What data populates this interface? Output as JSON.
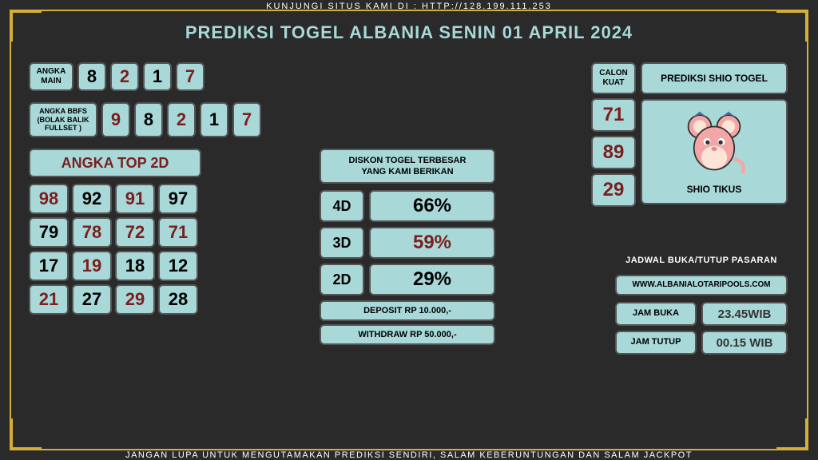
{
  "top_url": "KUNJUNGI SITUS KAMI DI : HTTP://128.199.111.253",
  "title": "PREDIKSI TOGEL ALBANIA SENIN 01 APRIL 2024",
  "bottom": "JANGAN LUPA UNTUK MENGUTAMAKAN PREDIKSI SENDIRI, SALAM KEBERUNTUNGAN DAN SALAM JACKPOT",
  "angka_main": {
    "label": "ANGKA\nMAIN",
    "digits": [
      "8",
      "2",
      "1",
      "7"
    ]
  },
  "angka_bbfs": {
    "label": "ANGKA BBFS\n(BOLAK BALIK\nFULLSET )",
    "digits": [
      "9",
      "8",
      "2",
      "1",
      "7"
    ]
  },
  "top2d": {
    "title": "ANGKA TOP 2D",
    "pairs": [
      "98",
      "92",
      "91",
      "97",
      "79",
      "78",
      "72",
      "71",
      "17",
      "19",
      "18",
      "12",
      "21",
      "27",
      "29",
      "28"
    ]
  },
  "diskon": {
    "title": "DISKON TOGEL TERBESAR\nYANG KAMI BERIKAN",
    "rows": [
      {
        "label": "4D",
        "val": "66%",
        "style": "blk"
      },
      {
        "label": "3D",
        "val": "59%",
        "style": "red"
      },
      {
        "label": "2D",
        "val": "29%",
        "style": "blk"
      }
    ],
    "deposit": "DEPOSIT RP 10.000,-",
    "withdraw": "WITHDRAW RP 50.000,-"
  },
  "calon": {
    "label": "CALON\nKUAT",
    "nums": [
      "71",
      "89",
      "29"
    ]
  },
  "shio": {
    "title": "PREDIKSI SHIO TOGEL",
    "name": "SHIO TIKUS"
  },
  "jadwal": {
    "title": "JADWAL BUKA/TUTUP PASARAN",
    "url": "WWW.ALBANIALOTARIPOOLS.COM",
    "buka_label": "JAM BUKA",
    "buka_val": "23.45WIB",
    "tutup_label": "JAM TUTUP",
    "tutup_val": "00.15 WIB"
  },
  "colors": {
    "frame": "#d4af37",
    "box_bg": "#a8d8d8",
    "accent_red": "#7a1f1f",
    "bg": "#2a2a2a"
  }
}
